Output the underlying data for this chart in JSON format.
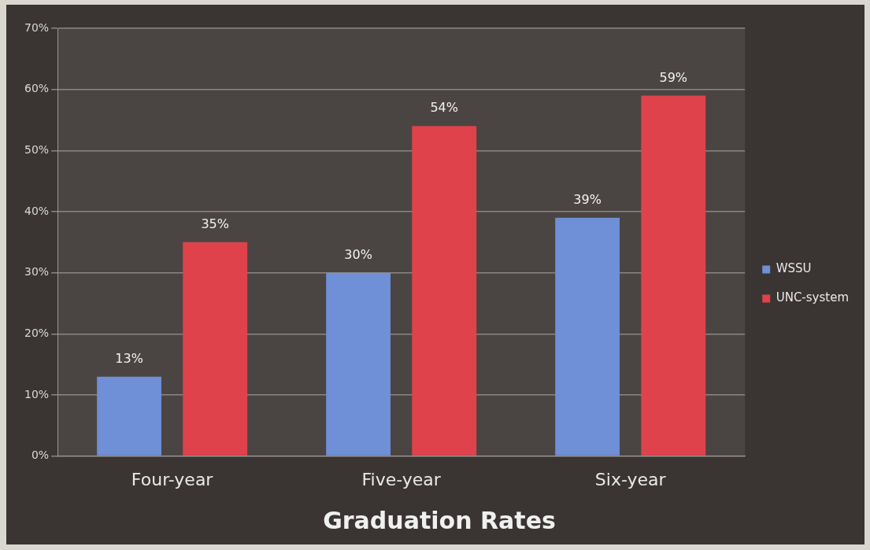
{
  "chart_data": {
    "type": "bar",
    "title": "Graduation Rates",
    "categories": [
      "Four-year",
      "Five-year",
      "Six-year"
    ],
    "series": [
      {
        "name": "WSSU",
        "color": "#6f8fd6",
        "values": [
          13,
          30,
          39
        ],
        "value_labels": [
          "13%",
          "30%",
          "39%"
        ]
      },
      {
        "name": "UNC-system",
        "color": "#e0424c",
        "values": [
          35,
          54,
          59
        ],
        "value_labels": [
          "35%",
          "54%",
          "59%"
        ]
      }
    ],
    "ylim": [
      0,
      70
    ],
    "yticks": [
      {
        "value": 0,
        "label": "0%"
      },
      {
        "value": 10,
        "label": "10%"
      },
      {
        "value": 20,
        "label": "20%"
      },
      {
        "value": 30,
        "label": "30%"
      },
      {
        "value": 40,
        "label": "40%"
      },
      {
        "value": 50,
        "label": "50%"
      },
      {
        "value": 60,
        "label": "60%"
      },
      {
        "value": 70,
        "label": "70%"
      }
    ],
    "grid": "y",
    "legend": "right"
  }
}
